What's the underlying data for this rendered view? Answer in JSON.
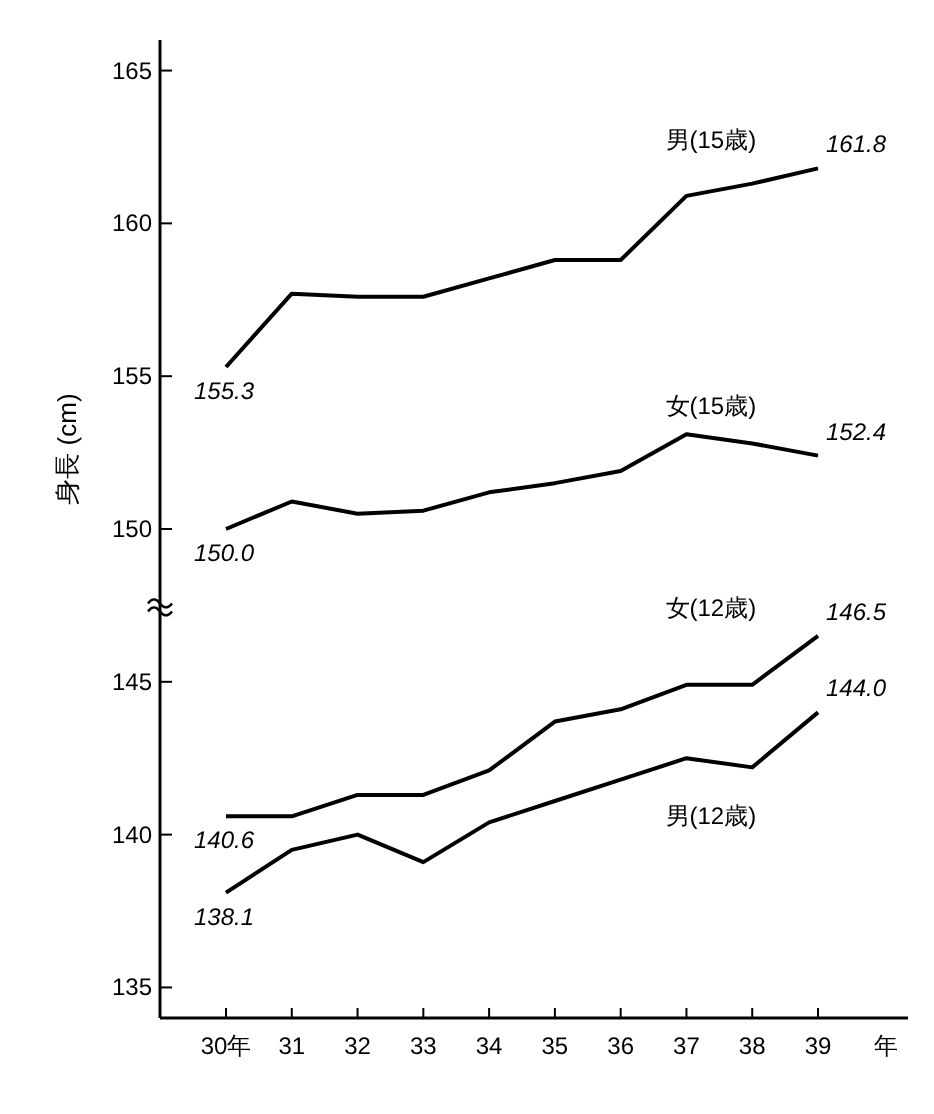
{
  "chart_data": {
    "type": "line",
    "ylabel": "身長 (cm)",
    "xlabel": "年",
    "categories": [
      "30年",
      "31",
      "32",
      "33",
      "34",
      "35",
      "36",
      "37",
      "38",
      "39"
    ],
    "ylim": [
      134,
      166
    ],
    "yticks": [
      135,
      140,
      145,
      150,
      155,
      160,
      165
    ],
    "grid": false,
    "marker": "none",
    "line_style": "solid",
    "series": [
      {
        "name": "男(15歳)",
        "color": "#000000",
        "values": [
          155.3,
          157.7,
          157.6,
          157.6,
          158.2,
          158.8,
          158.8,
          160.9,
          161.3,
          161.8
        ],
        "value_labels": [
          "155.3",
          null,
          null,
          null,
          null,
          null,
          null,
          null,
          null,
          "161.8"
        ]
      },
      {
        "name": "女(15歳)",
        "color": "#000000",
        "values": [
          150.0,
          150.9,
          150.5,
          150.6,
          151.2,
          151.5,
          151.9,
          153.1,
          152.8,
          152.4
        ],
        "value_labels": [
          "150.0",
          null,
          null,
          null,
          null,
          null,
          null,
          null,
          null,
          "152.4"
        ]
      },
      {
        "name": "女(12歳)",
        "color": "#000000",
        "values": [
          140.6,
          140.6,
          141.3,
          141.3,
          142.1,
          143.7,
          144.1,
          144.9,
          144.9,
          146.5
        ],
        "value_labels": [
          "140.6",
          null,
          null,
          null,
          null,
          null,
          null,
          null,
          null,
          "146.5"
        ]
      },
      {
        "name": "男(12歳)",
        "color": "#000000",
        "values": [
          138.1,
          139.5,
          140.0,
          139.1,
          140.4,
          141.1,
          141.8,
          142.5,
          142.2,
          144.0
        ],
        "value_labels": [
          "138.1",
          null,
          null,
          null,
          null,
          null,
          null,
          null,
          null,
          "144.0"
        ]
      }
    ]
  }
}
